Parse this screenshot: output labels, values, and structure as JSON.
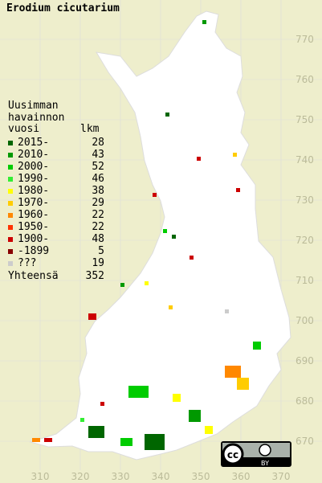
{
  "title": "Erodium cicutarium",
  "legend": {
    "heading": [
      "Uusimman",
      "havainnon"
    ],
    "col_year": "vuosi",
    "col_count": "lkm",
    "rows": [
      {
        "label": "2015-",
        "count": 28,
        "color": "#006600"
      },
      {
        "label": "2010-",
        "count": 43,
        "color": "#009900"
      },
      {
        "label": "2000-",
        "count": 52,
        "color": "#00cc00"
      },
      {
        "label": "1990-",
        "count": 46,
        "color": "#33ee33"
      },
      {
        "label": "1980-",
        "count": 38,
        "color": "#ffff00"
      },
      {
        "label": "1970-",
        "count": 29,
        "color": "#ffcc00"
      },
      {
        "label": "1960-",
        "count": 22,
        "color": "#ff8800"
      },
      {
        "label": "1950-",
        "count": 22,
        "color": "#ff3300"
      },
      {
        "label": "1900-",
        "count": 48,
        "color": "#cc0000"
      },
      {
        "label": "-1899",
        "count": 5,
        "color": "#880000"
      },
      {
        "label": "???",
        "count": 19,
        "color": "#cccccc"
      }
    ],
    "total_label": "Yhteensä",
    "total": 352
  },
  "grid": {
    "northing": [
      770,
      760,
      750,
      740,
      730,
      720,
      710,
      700,
      690,
      680,
      670
    ],
    "easting": [
      310,
      320,
      330,
      340,
      350,
      360,
      370
    ]
  },
  "license": {
    "cc": "cc",
    "by": "BY"
  }
}
